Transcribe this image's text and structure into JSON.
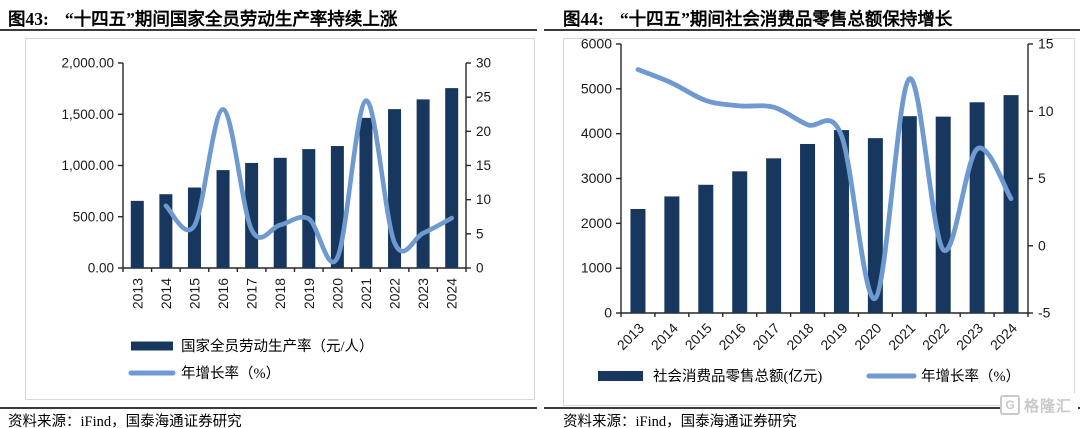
{
  "panels": [
    {
      "label": "图43:",
      "title": "“十四五”期间国家全员劳动生产率持续上涨",
      "source": "资料来源：iFind，国泰海通证券研究"
    },
    {
      "label": "图44:",
      "title": "“十四五”期间社会消费品零售总额保持增长",
      "source": "资料来源：iFind，国泰海通证券研究"
    }
  ],
  "watermark": {
    "logo_letter": "G",
    "text": "格隆汇"
  },
  "colors": {
    "bar": "#17375E",
    "line": "#6E9AD0",
    "axis": "#262626",
    "title_rule": "#3a3a3a",
    "box_border": "#d8d8d8",
    "watermark": "#c9c9c9"
  },
  "chart_data": [
    {
      "type": "bar+line",
      "title": "“十四五”期间国家全员劳动生产率持续上涨",
      "categories": [
        "2013",
        "2014",
        "2015",
        "2016",
        "2017",
        "2018",
        "2019",
        "2020",
        "2021",
        "2022",
        "2023",
        "2024"
      ],
      "series": [
        {
          "name": "国家全员劳动生产率（元/人）",
          "type": "bar",
          "axis": "left",
          "color": "#17375E",
          "values": [
            655,
            720,
            785,
            955,
            1025,
            1075,
            1160,
            1190,
            1465,
            1550,
            1645,
            1755
          ]
        },
        {
          "name": "年增长率（%）",
          "type": "line",
          "axis": "right",
          "color": "#6E9AD0",
          "values": [
            null,
            9.1,
            6.2,
            23.2,
            5.6,
            6.3,
            7.2,
            1.5,
            24.5,
            3.7,
            5.1,
            7.3
          ]
        }
      ],
      "left_axis": {
        "min": 0,
        "max": 2000,
        "tick_labels": [
          "0.00",
          "500.00",
          "1,000.00",
          "1,500.00",
          "2,000.00"
        ]
      },
      "right_axis": {
        "min": 0,
        "max": 30,
        "tick_labels": [
          "0",
          "5",
          "10",
          "15",
          "20",
          "25",
          "30"
        ]
      },
      "legend_position": "bottom-left-stacked",
      "grid": false
    },
    {
      "type": "bar+line",
      "title": "“十四五”期间社会消费品零售总额保持增长",
      "categories": [
        "2013",
        "2014",
        "2015",
        "2016",
        "2017",
        "2018",
        "2019",
        "2020",
        "2021",
        "2022",
        "2023",
        "2024"
      ],
      "series": [
        {
          "name": "社会消费品零售总额(亿元)",
          "type": "bar",
          "axis": "left",
          "color": "#17375E",
          "values": [
            2320,
            2600,
            2860,
            3160,
            3450,
            3770,
            4080,
            3900,
            4390,
            4380,
            4700,
            4860
          ]
        },
        {
          "name": "年增长率（%）",
          "type": "line",
          "axis": "right",
          "color": "#6E9AD0",
          "values": [
            13.1,
            12.1,
            10.8,
            10.4,
            10.3,
            9.0,
            8.2,
            -3.9,
            12.4,
            -0.3,
            7.2,
            3.5
          ]
        }
      ],
      "left_axis": {
        "min": 0,
        "max": 6000,
        "tick_labels": [
          "0",
          "1000",
          "2000",
          "3000",
          "4000",
          "5000",
          "6000"
        ]
      },
      "right_axis": {
        "min": -5,
        "max": 15,
        "tick_labels": [
          "-5",
          "0",
          "5",
          "10",
          "15"
        ]
      },
      "legend_position": "bottom-row",
      "grid": false
    }
  ]
}
